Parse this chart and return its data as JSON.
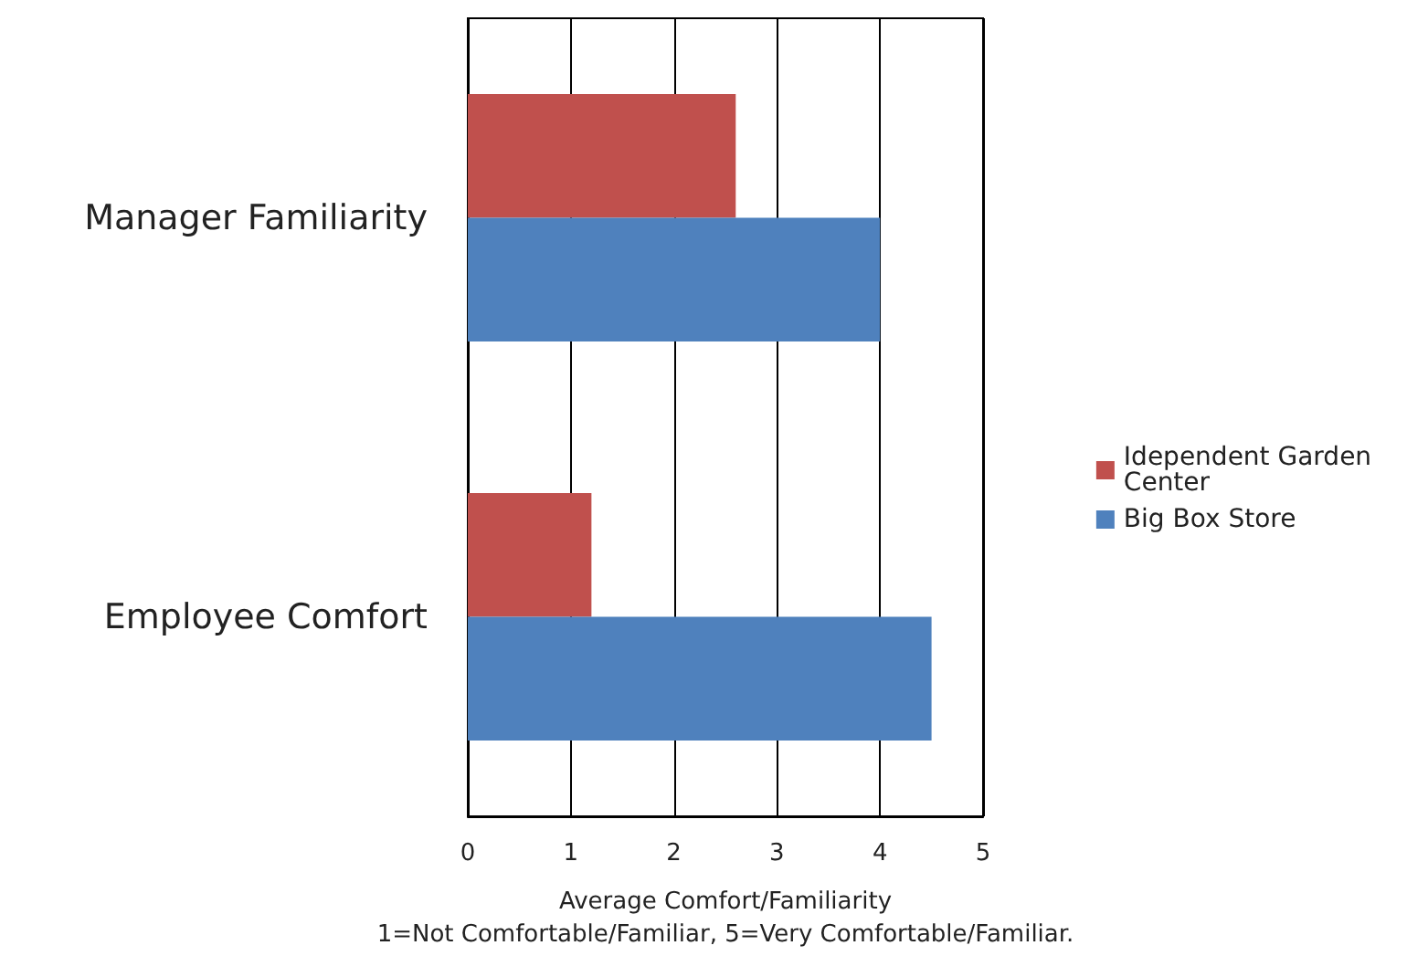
{
  "chart_data": {
    "type": "bar",
    "orientation": "horizontal",
    "categories": [
      "Manager Familiarity",
      "Employee Comfort"
    ],
    "series": [
      {
        "name": "Idependent Garden Center",
        "color": "#c0504d",
        "values": [
          2.6,
          1.2
        ]
      },
      {
        "name": "Big Box Store",
        "color": "#4f81bd",
        "values": [
          4.0,
          4.5
        ]
      }
    ],
    "xlabel": "Average Comfort/Familiarity\n1=Not Comfortable/Familiar, 5=Very Comfortable/Familiar.",
    "xlim": [
      0,
      5
    ],
    "xticks": [
      0,
      1,
      2,
      3,
      4,
      5
    ],
    "grid": "x",
    "legend": "right"
  }
}
